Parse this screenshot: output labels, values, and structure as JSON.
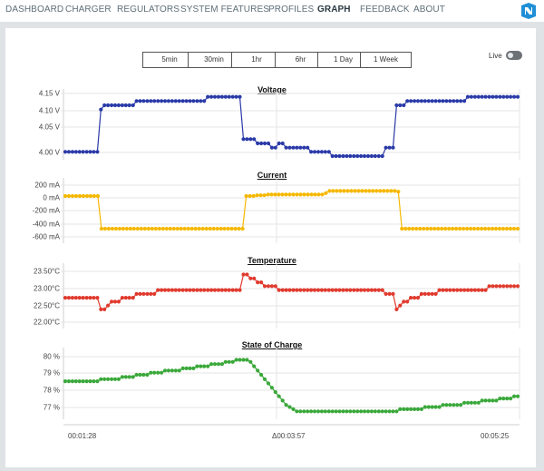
{
  "nav": {
    "items": [
      {
        "label": "DASHBOARD",
        "active": false
      },
      {
        "label": "CHARGER",
        "active": false
      },
      {
        "label": "REGULATORS",
        "active": false
      },
      {
        "label": "SYSTEM FEATURES",
        "active": false
      },
      {
        "label": "PROFILES",
        "active": false
      },
      {
        "label": "GRAPH",
        "active": true
      },
      {
        "label": "FEEDBACK",
        "active": false
      },
      {
        "label": "ABOUT",
        "active": false
      }
    ]
  },
  "time_buttons": [
    "5min",
    "30min",
    "1hr",
    "6hr",
    "1 Day",
    "1 Week"
  ],
  "live": {
    "label": "Live",
    "on": false
  },
  "x_axis": {
    "left": "00:01:28",
    "center": "Δ00:03:57",
    "right": "00:05:25"
  },
  "colors": {
    "voltage": "#2a3aa8",
    "current": "#f5b800",
    "temperature": "#e03a2e",
    "soc": "#3aa83a"
  },
  "chart_data": [
    {
      "type": "line",
      "title": "Voltage",
      "y_ticks": [
        "4.15 V",
        "4.10 V",
        "4.05 V",
        "4.00 V"
      ],
      "ylim": [
        4.0,
        4.15
      ],
      "series": [
        {
          "values": [
            4.01,
            4.01,
            4.01,
            4.01,
            4.01,
            4.01,
            4.01,
            4.01,
            4.01,
            4.01,
            4.11,
            4.12,
            4.12,
            4.12,
            4.12,
            4.12,
            4.12,
            4.12,
            4.12,
            4.12,
            4.13,
            4.13,
            4.13,
            4.13,
            4.13,
            4.13,
            4.13,
            4.13,
            4.13,
            4.13,
            4.13,
            4.13,
            4.13,
            4.13,
            4.13,
            4.13,
            4.13,
            4.13,
            4.13,
            4.13,
            4.14,
            4.14,
            4.14,
            4.14,
            4.14,
            4.14,
            4.14,
            4.14,
            4.14,
            4.14,
            4.04,
            4.04,
            4.04,
            4.04,
            4.03,
            4.03,
            4.03,
            4.03,
            4.02,
            4.02,
            4.03,
            4.03,
            4.02,
            4.02,
            4.02,
            4.02,
            4.02,
            4.02,
            4.02,
            4.01,
            4.01,
            4.01,
            4.01,
            4.01,
            4.01,
            4.0,
            4.0,
            4.0,
            4.0,
            4.0,
            4.0,
            4.0,
            4.0,
            4.0,
            4.0,
            4.0,
            4.0,
            4.0,
            4.0,
            4.0,
            4.02,
            4.02,
            4.02,
            4.12,
            4.12,
            4.12,
            4.13,
            4.13,
            4.13,
            4.13,
            4.13,
            4.13,
            4.13,
            4.13,
            4.13,
            4.13,
            4.13,
            4.13,
            4.13,
            4.13,
            4.13,
            4.13,
            4.13,
            4.14,
            4.14,
            4.14,
            4.14,
            4.14,
            4.14,
            4.14,
            4.14,
            4.14,
            4.14,
            4.14,
            4.14,
            4.14,
            4.14,
            4.14
          ]
        }
      ]
    },
    {
      "type": "line",
      "title": "Current",
      "y_ticks": [
        "200 mA",
        "0 mA",
        "-200 mA",
        "-400 mA",
        "-600 mA"
      ],
      "ylim": [
        -600,
        200
      ],
      "series": [
        {
          "values": [
            0,
            0,
            0,
            0,
            0,
            0,
            0,
            0,
            0,
            0,
            -450,
            -450,
            -450,
            -450,
            -450,
            -450,
            -450,
            -450,
            -450,
            -450,
            -450,
            -450,
            -450,
            -450,
            -450,
            -450,
            -450,
            -450,
            -450,
            -450,
            -450,
            -450,
            -450,
            -450,
            -450,
            -450,
            -450,
            -450,
            -450,
            -450,
            -450,
            -450,
            -450,
            -450,
            -450,
            -450,
            -450,
            -450,
            -450,
            -450,
            0,
            0,
            0,
            10,
            10,
            10,
            20,
            20,
            20,
            20,
            20,
            20,
            20,
            20,
            20,
            20,
            20,
            20,
            20,
            20,
            20,
            20,
            40,
            70,
            70,
            70,
            70,
            70,
            70,
            70,
            70,
            70,
            70,
            70,
            70,
            70,
            70,
            70,
            70,
            70,
            70,
            70,
            60,
            -450,
            -450,
            -450,
            -450,
            -450,
            -450,
            -450,
            -450,
            -450,
            -450,
            -450,
            -450,
            -450,
            -450,
            -450,
            -450,
            -450,
            -450,
            -450,
            -450,
            -450,
            -450,
            -450,
            -450,
            -450,
            -450,
            -450,
            -450,
            -450,
            -450,
            -450,
            -450,
            -450
          ]
        }
      ]
    },
    {
      "type": "line",
      "title": "Temperature",
      "y_ticks": [
        "23.50°C",
        "23.00°C",
        "22.50°C",
        "22.00°C"
      ],
      "ylim": [
        22.0,
        23.5
      ],
      "series": [
        {
          "values": [
            22.7,
            22.7,
            22.7,
            22.7,
            22.7,
            22.7,
            22.7,
            22.7,
            22.7,
            22.7,
            22.4,
            22.4,
            22.5,
            22.6,
            22.6,
            22.6,
            22.7,
            22.7,
            22.7,
            22.7,
            22.8,
            22.8,
            22.8,
            22.8,
            22.8,
            22.8,
            22.9,
            22.9,
            22.9,
            22.9,
            22.9,
            22.9,
            22.9,
            22.9,
            22.9,
            22.9,
            22.9,
            22.9,
            22.9,
            22.9,
            22.9,
            22.9,
            22.9,
            22.9,
            22.9,
            22.9,
            22.9,
            22.9,
            22.9,
            22.9,
            23.3,
            23.3,
            23.2,
            23.2,
            23.1,
            23.1,
            23.0,
            23.0,
            23.0,
            23.0,
            22.9,
            22.9,
            22.9,
            22.9,
            22.9,
            22.9,
            22.9,
            22.9,
            22.9,
            22.9,
            22.9,
            22.9,
            22.9,
            22.9,
            22.9,
            22.9,
            22.9,
            22.9,
            22.9,
            22.9,
            22.9,
            22.9,
            22.9,
            22.9,
            22.9,
            22.9,
            22.9,
            22.9,
            22.9,
            22.9,
            22.8,
            22.8,
            22.8,
            22.4,
            22.5,
            22.6,
            22.6,
            22.7,
            22.7,
            22.7,
            22.8,
            22.8,
            22.8,
            22.8,
            22.8,
            22.9,
            22.9,
            22.9,
            22.9,
            22.9,
            22.9,
            22.9,
            22.9,
            22.9,
            22.9,
            22.9,
            22.9,
            22.9,
            22.9,
            23.0,
            23.0,
            23.0,
            23.0,
            23.0,
            23.0,
            23.0,
            23.0,
            23.0
          ]
        }
      ]
    },
    {
      "type": "line",
      "title": "State of Charge",
      "y_ticks": [
        "80 %",
        "79 %",
        "78 %",
        "77 %"
      ],
      "ylim": [
        77,
        80
      ],
      "series": [
        {
          "values": [
            78.6,
            78.6,
            78.6,
            78.6,
            78.6,
            78.6,
            78.6,
            78.6,
            78.6,
            78.6,
            78.7,
            78.7,
            78.7,
            78.7,
            78.7,
            78.7,
            78.8,
            78.8,
            78.8,
            78.8,
            78.9,
            78.9,
            78.9,
            78.9,
            79.0,
            79.0,
            79.0,
            79.0,
            79.1,
            79.1,
            79.1,
            79.1,
            79.1,
            79.2,
            79.2,
            79.2,
            79.2,
            79.3,
            79.3,
            79.3,
            79.3,
            79.4,
            79.4,
            79.4,
            79.4,
            79.5,
            79.5,
            79.5,
            79.6,
            79.6,
            79.6,
            79.6,
            79.5,
            79.3,
            79.1,
            78.9,
            78.7,
            78.5,
            78.3,
            78.1,
            77.9,
            77.7,
            77.5,
            77.4,
            77.3,
            77.2,
            77.2,
            77.2,
            77.2,
            77.2,
            77.2,
            77.2,
            77.2,
            77.2,
            77.2,
            77.2,
            77.2,
            77.2,
            77.2,
            77.2,
            77.2,
            77.2,
            77.2,
            77.2,
            77.2,
            77.2,
            77.2,
            77.2,
            77.2,
            77.2,
            77.2,
            77.2,
            77.2,
            77.2,
            77.3,
            77.3,
            77.3,
            77.3,
            77.3,
            77.3,
            77.3,
            77.4,
            77.4,
            77.4,
            77.4,
            77.4,
            77.5,
            77.5,
            77.5,
            77.5,
            77.5,
            77.5,
            77.6,
            77.6,
            77.6,
            77.6,
            77.6,
            77.7,
            77.7,
            77.7,
            77.7,
            77.7,
            77.8,
            77.8,
            77.8,
            77.8,
            77.9,
            77.9
          ]
        }
      ]
    }
  ]
}
